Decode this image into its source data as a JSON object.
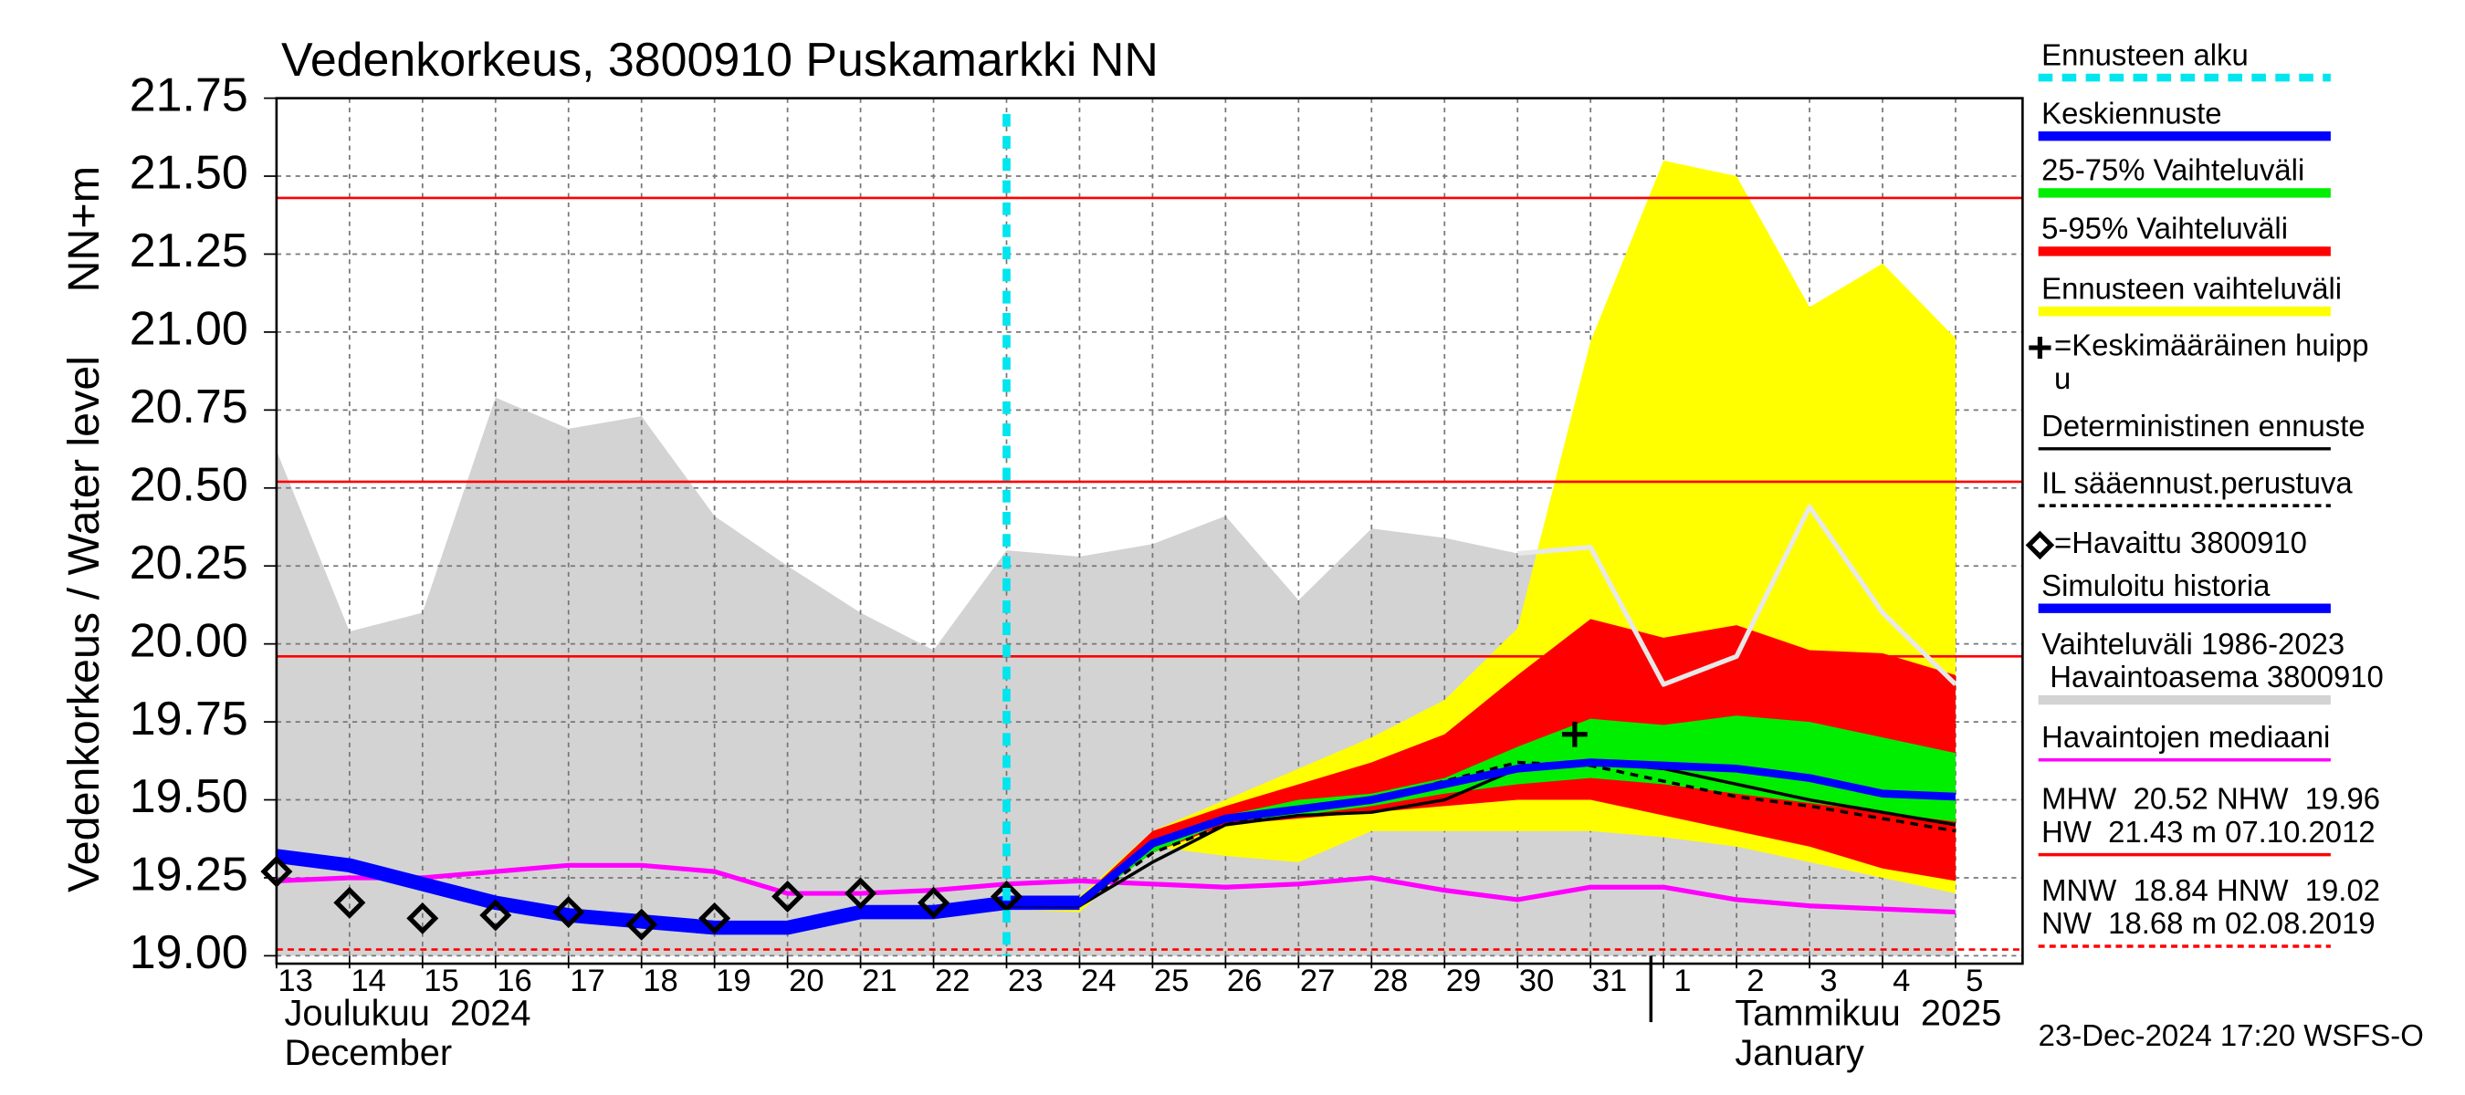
{
  "chart_data": {
    "type": "hydrograph",
    "title": "Vedenkorkeus, 3800910 Puskamarkki NN",
    "y_label": [
      "Vedenkorkeus / Water level",
      "NN+m"
    ],
    "categories": [
      "13",
      "14",
      "15",
      "16",
      "17",
      "18",
      "19",
      "20",
      "21",
      "22",
      "23",
      "24",
      "25",
      "26",
      "27",
      "28",
      "29",
      "30",
      "31",
      "1",
      "2",
      "3",
      "4",
      "5"
    ],
    "months": [
      [
        "Joulukuu  2024",
        "December"
      ],
      [
        "Tammikuu  2025",
        "January"
      ]
    ],
    "ylim": [
      19.0,
      21.75
    ],
    "yticks": [
      {
        "value": 19.0,
        "label": "19.00"
      },
      19.25,
      {
        "value": 19.5,
        "label": "19.50"
      },
      19.75,
      {
        "value": 20.0,
        "label": "20.00"
      },
      20.25,
      {
        "value": 20.5,
        "label": "20.50"
      },
      20.75,
      {
        "value": 21.0,
        "label": "21.00"
      },
      21.25,
      {
        "value": 21.5,
        "label": "21.50"
      },
      21.75
    ],
    "grid": true,
    "forecast_start": "23",
    "bands": [
      {
        "color": "#d3d3d3",
        "upper": [
          20.62,
          20.04,
          20.1,
          20.79,
          20.69,
          20.73,
          20.41,
          20.25,
          20.1,
          19.98,
          20.3,
          20.28,
          20.32,
          20.41,
          20.14,
          20.37,
          20.34,
          20.29,
          20.32,
          19.87,
          19.96,
          20.44,
          20.1,
          19.87
        ]
      },
      {
        "color": "#ffff00",
        "upper": [
          null,
          null,
          null,
          null,
          null,
          null,
          null,
          null,
          null,
          null,
          19.17,
          19.19,
          19.4,
          19.5,
          19.6,
          19.7,
          19.82,
          20.05,
          20.97,
          21.55,
          21.5,
          21.08,
          21.22,
          20.98
        ],
        "lower": [
          null,
          null,
          null,
          null,
          null,
          null,
          null,
          null,
          null,
          null,
          19.15,
          19.14,
          19.35,
          19.32,
          19.3,
          19.4,
          19.4,
          19.4,
          19.4,
          19.38,
          19.35,
          19.3,
          19.25,
          19.2
        ]
      },
      {
        "color": "#ff0000",
        "upper": [
          null,
          null,
          null,
          null,
          null,
          null,
          null,
          null,
          null,
          null,
          19.16,
          19.18,
          19.4,
          19.48,
          19.55,
          19.62,
          19.71,
          19.9,
          20.08,
          20.02,
          20.06,
          19.98,
          19.97,
          19.9
        ],
        "lower": [
          null,
          null,
          null,
          null,
          null,
          null,
          null,
          null,
          null,
          null,
          19.16,
          19.16,
          19.33,
          19.42,
          19.44,
          19.46,
          19.48,
          19.5,
          19.5,
          19.45,
          19.4,
          19.35,
          19.28,
          19.24
        ]
      },
      {
        "color": "#00ee00",
        "upper": [
          null,
          null,
          null,
          null,
          null,
          null,
          null,
          null,
          null,
          null,
          19.17,
          19.18,
          19.37,
          19.45,
          19.5,
          19.52,
          19.57,
          19.67,
          19.76,
          19.74,
          19.77,
          19.75,
          19.7,
          19.65
        ],
        "lower": [
          null,
          null,
          null,
          null,
          null,
          null,
          null,
          null,
          null,
          null,
          19.16,
          19.16,
          19.33,
          19.43,
          19.45,
          19.48,
          19.52,
          19.55,
          19.57,
          19.55,
          19.52,
          19.49,
          19.46,
          19.43
        ]
      }
    ],
    "reference_lines": [
      {
        "value": 21.43,
        "color": "#ff0000",
        "dashed": false
      },
      {
        "value": 20.52,
        "color": "#ff0000",
        "dashed": false
      },
      {
        "value": 19.96,
        "color": "#ff0000",
        "dashed": false
      },
      {
        "value": 19.02,
        "color": "#ff0000",
        "dashed": true
      }
    ],
    "series": [
      {
        "color": "#e8e8e8",
        "width": 3,
        "dashed": false,
        "values": [
          null,
          null,
          null,
          null,
          null,
          null,
          null,
          null,
          null,
          null,
          null,
          null,
          null,
          null,
          null,
          null,
          null,
          20.29,
          20.31,
          19.87,
          19.96,
          20.44,
          20.1,
          19.87
        ]
      },
      {
        "color": "#ff00ff",
        "width": 3,
        "dashed": false,
        "values": [
          19.24,
          19.25,
          19.25,
          19.27,
          19.29,
          19.29,
          19.27,
          19.2,
          19.2,
          19.21,
          19.23,
          19.24,
          19.23,
          19.22,
          19.23,
          19.25,
          19.21,
          19.18,
          19.22,
          19.22,
          19.18,
          19.16,
          19.15,
          19.14
        ]
      },
      {
        "color": "#0000ff",
        "width": 9,
        "dashed": false,
        "values": [
          19.32,
          19.29,
          19.23,
          19.17,
          19.13,
          19.11,
          19.09,
          19.09,
          19.14,
          19.14,
          19.17,
          19.17,
          null,
          null,
          null,
          null,
          null,
          null,
          null,
          null,
          null,
          null,
          null,
          null
        ]
      },
      {
        "color": "#000000",
        "width": 2,
        "dashed": false,
        "values": [
          null,
          null,
          null,
          null,
          null,
          null,
          null,
          null,
          null,
          null,
          19.16,
          19.16,
          19.3,
          19.42,
          19.45,
          19.46,
          19.5,
          19.6,
          19.62,
          19.6,
          19.55,
          19.5,
          19.46,
          19.42
        ]
      },
      {
        "color": "#000000",
        "width": 2,
        "dashed": true,
        "values": [
          null,
          null,
          null,
          null,
          null,
          null,
          null,
          null,
          null,
          null,
          19.16,
          19.16,
          19.33,
          19.42,
          19.47,
          19.5,
          19.56,
          19.62,
          19.61,
          19.56,
          19.51,
          19.48,
          19.44,
          19.4
        ]
      },
      {
        "color": "#0000ff",
        "width": 5,
        "dashed": false,
        "values": [
          null,
          null,
          null,
          null,
          null,
          null,
          null,
          null,
          null,
          null,
          19.17,
          19.17,
          19.36,
          19.44,
          19.47,
          19.5,
          19.55,
          19.6,
          19.62,
          19.61,
          19.6,
          19.57,
          19.52,
          19.51
        ]
      }
    ],
    "observed": [
      19.27,
      19.17,
      19.12,
      19.13,
      19.14,
      19.1,
      19.12,
      19.19,
      19.2,
      19.17,
      19.19,
      null,
      null,
      null,
      null,
      null,
      null,
      null,
      null,
      null,
      null,
      null,
      null,
      null
    ],
    "mean_peak": {
      "category": "31",
      "value": 19.71
    },
    "legend": [
      {
        "label": [
          "Ennusteen alku"
        ],
        "color": "#00e5ee",
        "style": "dashed"
      },
      {
        "label": [
          "Keskiennuste"
        ],
        "color": "#0000ff",
        "style": "thick"
      },
      {
        "label": [
          "25-75% Vaihteluväli"
        ],
        "color": "#00ee00",
        "style": "thick"
      },
      {
        "label": [
          "5-95% Vaihteluväli"
        ],
        "color": "#ff0000",
        "style": "thick"
      },
      {
        "label": [
          "Ennusteen vaihteluväli"
        ],
        "color": "#ffff00",
        "style": "thick"
      },
      {
        "label": [
          "=Keskimääräinen huipp",
          "u"
        ],
        "color": "#000000",
        "style": "plus"
      },
      {
        "label": [
          "Deterministinen ennuste"
        ],
        "color": "#000000",
        "style": "thin"
      },
      {
        "label": [
          "IL sääennust.perustuva"
        ],
        "color": "#000000",
        "style": "thin-dashed"
      },
      {
        "label": [
          "=Havaittu 3800910"
        ],
        "color": "#000000",
        "style": "diamond"
      },
      {
        "label": [
          "Simuloitu historia"
        ],
        "color": "#0000ff",
        "style": "thick"
      },
      {
        "label": [
          "Vaihteluväli 1986-2023",
          " Havaintoasema 3800910"
        ],
        "color": "#d3d3d3",
        "style": "thick"
      },
      {
        "label": [
          "Havaintojen mediaani"
        ],
        "color": "#ff00ff",
        "style": "thin"
      },
      {
        "label": [
          "MHW  20.52 NHW  19.96",
          "HW  21.43 m 07.10.2012"
        ],
        "color": "#ff0000",
        "style": "thin"
      },
      {
        "label": [
          "MNW  18.84 HNW  19.02",
          "NW  18.68 m 02.08.2019"
        ],
        "color": "#ff0000",
        "style": "thin-dashed"
      }
    ],
    "timestamp": "23-Dec-2024 17:20 WSFS-O"
  }
}
